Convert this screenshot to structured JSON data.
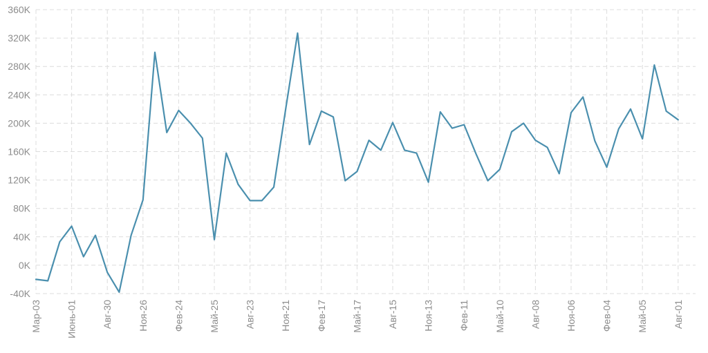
{
  "chart_data": {
    "type": "line",
    "title": "",
    "xlabel": "",
    "ylabel": "",
    "ylim": [
      -40000,
      360000
    ],
    "y_ticks": [
      -40000,
      0,
      40000,
      80000,
      120000,
      160000,
      200000,
      240000,
      280000,
      320000,
      360000
    ],
    "y_tick_labels": [
      "-40K",
      "0K",
      "40K",
      "80K",
      "120K",
      "160K",
      "200K",
      "240K",
      "280K",
      "320K",
      "360K"
    ],
    "x_ticks": [
      {
        "index": 0,
        "label": "Мар-03"
      },
      {
        "index": 3,
        "label": "Июнь-01"
      },
      {
        "index": 6,
        "label": "Авг-30"
      },
      {
        "index": 9,
        "label": "Ноя-26"
      },
      {
        "index": 12,
        "label": "Фев-24"
      },
      {
        "index": 15,
        "label": "Май-25"
      },
      {
        "index": 18,
        "label": "Авг-23"
      },
      {
        "index": 21,
        "label": "Ноя-21"
      },
      {
        "index": 24,
        "label": "Фев-17"
      },
      {
        "index": 27,
        "label": "Май-17"
      },
      {
        "index": 30,
        "label": "Авг-15"
      },
      {
        "index": 33,
        "label": "Ноя-13"
      },
      {
        "index": 36,
        "label": "Фев-11"
      },
      {
        "index": 39,
        "label": "Май-10"
      },
      {
        "index": 42,
        "label": "Авг-08"
      },
      {
        "index": 45,
        "label": "Ноя-06"
      },
      {
        "index": 48,
        "label": "Фев-04"
      },
      {
        "index": 51,
        "label": "Май-05"
      },
      {
        "index": 54,
        "label": "Авг-01"
      }
    ],
    "grid": true,
    "legend": "none",
    "series": [
      {
        "color": "#4a8fae",
        "values": [
          -20000,
          -22000,
          33000,
          55000,
          12000,
          42000,
          -10000,
          -38000,
          42000,
          92000,
          300000,
          187000,
          218000,
          200000,
          179000,
          36000,
          158000,
          114000,
          91000,
          91000,
          110000,
          220000,
          327000,
          170000,
          217000,
          209000,
          119000,
          132000,
          176000,
          162000,
          201000,
          162000,
          158000,
          117000,
          216000,
          193000,
          198000,
          157000,
          119000,
          135000,
          188000,
          200000,
          176000,
          166000,
          129000,
          215000,
          237000,
          175000,
          138000,
          192000,
          220000,
          178000,
          282000,
          217000,
          205000
        ]
      }
    ]
  }
}
